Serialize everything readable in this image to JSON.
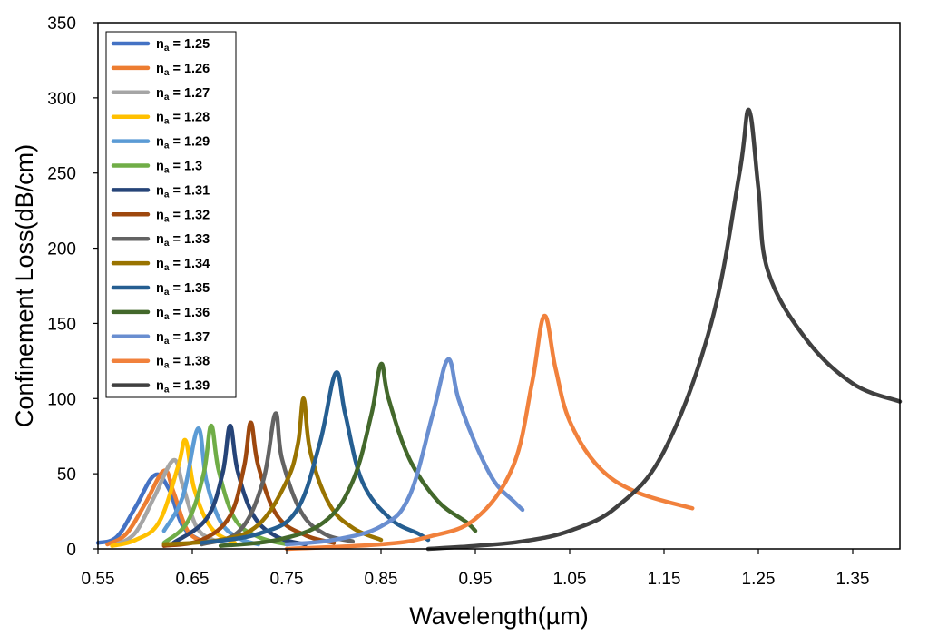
{
  "chart_data": {
    "type": "line",
    "title": "",
    "xlabel": "Wavelength(µm)",
    "ylabel": "Confinement  Loss(dB/cm)",
    "xlim": [
      0.55,
      1.4
    ],
    "ylim": [
      0,
      350
    ],
    "x_ticks": [
      0.55,
      0.65,
      0.75,
      0.85,
      0.95,
      1.05,
      1.15,
      1.25,
      1.35
    ],
    "x_tick_labels": [
      "0.55",
      "0.65",
      "0.75",
      "0.85",
      "0.95",
      "1.05",
      "1.15",
      "1.25",
      "1.35"
    ],
    "y_ticks": [
      0,
      50,
      100,
      150,
      200,
      250,
      300,
      350
    ],
    "y_tick_labels": [
      "0",
      "50",
      "100",
      "150",
      "200",
      "250",
      "300",
      "350"
    ],
    "grid": false,
    "legend_position": "top-left",
    "legend_symbol": "n",
    "legend_subscript": "a",
    "series": [
      {
        "name": "1.25",
        "color": "#4472C4",
        "peak_x": 0.61,
        "peak_y": 49,
        "points": [
          [
            0.55,
            4
          ],
          [
            0.57,
            8
          ],
          [
            0.59,
            28
          ],
          [
            0.61,
            49
          ],
          [
            0.625,
            40
          ],
          [
            0.64,
            15
          ],
          [
            0.66,
            5
          ]
        ]
      },
      {
        "name": "1.26",
        "color": "#ED7D31",
        "peak_x": 0.62,
        "peak_y": 52,
        "points": [
          [
            0.56,
            3
          ],
          [
            0.58,
            10
          ],
          [
            0.6,
            30
          ],
          [
            0.62,
            52
          ],
          [
            0.63,
            38
          ],
          [
            0.645,
            12
          ],
          [
            0.665,
            4
          ]
        ]
      },
      {
        "name": "1.27",
        "color": "#A5A5A5",
        "peak_x": 0.63,
        "peak_y": 59,
        "points": [
          [
            0.57,
            3
          ],
          [
            0.59,
            11
          ],
          [
            0.61,
            35
          ],
          [
            0.63,
            59
          ],
          [
            0.64,
            42
          ],
          [
            0.655,
            14
          ],
          [
            0.675,
            5
          ]
        ]
      },
      {
        "name": "1.28",
        "color": "#FFC000",
        "peak_x": 0.643,
        "peak_y": 72,
        "points": [
          [
            0.565,
            2
          ],
          [
            0.59,
            6
          ],
          [
            0.615,
            18
          ],
          [
            0.635,
            55
          ],
          [
            0.643,
            72
          ],
          [
            0.652,
            40
          ],
          [
            0.67,
            14
          ],
          [
            0.695,
            4
          ]
        ]
      },
      {
        "name": "1.29",
        "color": "#5B9BD5",
        "peak_x": 0.656,
        "peak_y": 80,
        "points": [
          [
            0.62,
            12
          ],
          [
            0.64,
            35
          ],
          [
            0.656,
            80
          ],
          [
            0.665,
            45
          ],
          [
            0.68,
            18
          ],
          [
            0.7,
            7
          ],
          [
            0.72,
            3
          ]
        ]
      },
      {
        "name": "1.3",
        "color": "#70AD47",
        "peak_x": 0.67,
        "peak_y": 82,
        "points": [
          [
            0.62,
            4
          ],
          [
            0.645,
            18
          ],
          [
            0.662,
            50
          ],
          [
            0.67,
            82
          ],
          [
            0.678,
            52
          ],
          [
            0.695,
            20
          ],
          [
            0.72,
            8
          ],
          [
            0.75,
            3
          ]
        ]
      },
      {
        "name": "1.31",
        "color": "#264478",
        "peak_x": 0.69,
        "peak_y": 82,
        "points": [
          [
            0.63,
            4
          ],
          [
            0.665,
            20
          ],
          [
            0.682,
            50
          ],
          [
            0.69,
            82
          ],
          [
            0.698,
            52
          ],
          [
            0.715,
            22
          ],
          [
            0.74,
            8
          ],
          [
            0.77,
            3
          ]
        ]
      },
      {
        "name": "1.32",
        "color": "#9E480E",
        "peak_x": 0.712,
        "peak_y": 84,
        "points": [
          [
            0.62,
            2
          ],
          [
            0.66,
            6
          ],
          [
            0.69,
            22
          ],
          [
            0.705,
            55
          ],
          [
            0.712,
            84
          ],
          [
            0.72,
            55
          ],
          [
            0.74,
            22
          ],
          [
            0.77,
            9
          ],
          [
            0.8,
            4
          ]
        ]
      },
      {
        "name": "1.33",
        "color": "#636363",
        "peak_x": 0.738,
        "peak_y": 90,
        "points": [
          [
            0.66,
            3
          ],
          [
            0.7,
            12
          ],
          [
            0.725,
            45
          ],
          [
            0.738,
            90
          ],
          [
            0.745,
            60
          ],
          [
            0.765,
            25
          ],
          [
            0.79,
            10
          ],
          [
            0.82,
            5
          ]
        ]
      },
      {
        "name": "1.34",
        "color": "#997300",
        "peak_x": 0.768,
        "peak_y": 100,
        "points": [
          [
            0.62,
            3
          ],
          [
            0.68,
            6
          ],
          [
            0.72,
            16
          ],
          [
            0.75,
            45
          ],
          [
            0.762,
            70
          ],
          [
            0.768,
            100
          ],
          [
            0.775,
            65
          ],
          [
            0.795,
            30
          ],
          [
            0.82,
            14
          ],
          [
            0.85,
            6
          ]
        ]
      },
      {
        "name": "1.35",
        "color": "#255E91",
        "peak_x": 0.802,
        "peak_y": 117,
        "points": [
          [
            0.66,
            4
          ],
          [
            0.72,
            10
          ],
          [
            0.76,
            25
          ],
          [
            0.785,
            70
          ],
          [
            0.802,
            117
          ],
          [
            0.812,
            90
          ],
          [
            0.83,
            45
          ],
          [
            0.86,
            20
          ],
          [
            0.89,
            10
          ],
          [
            0.9,
            6
          ]
        ]
      },
      {
        "name": "1.36",
        "color": "#43682B",
        "peak_x": 0.85,
        "peak_y": 123,
        "points": [
          [
            0.68,
            2
          ],
          [
            0.74,
            6
          ],
          [
            0.79,
            18
          ],
          [
            0.82,
            45
          ],
          [
            0.84,
            90
          ],
          [
            0.85,
            123
          ],
          [
            0.858,
            100
          ],
          [
            0.88,
            60
          ],
          [
            0.91,
            32
          ],
          [
            0.94,
            18
          ],
          [
            0.95,
            12
          ]
        ]
      },
      {
        "name": "1.37",
        "color": "#698ED0",
        "peak_x": 0.921,
        "peak_y": 126,
        "points": [
          [
            0.75,
            3
          ],
          [
            0.8,
            6
          ],
          [
            0.85,
            15
          ],
          [
            0.88,
            35
          ],
          [
            0.905,
            90
          ],
          [
            0.921,
            126
          ],
          [
            0.932,
            100
          ],
          [
            0.95,
            70
          ],
          [
            0.97,
            45
          ],
          [
            0.99,
            32
          ],
          [
            1.0,
            26
          ]
        ]
      },
      {
        "name": "1.38",
        "color": "#F1813C",
        "peak_x": 1.023,
        "peak_y": 155,
        "points": [
          [
            0.75,
            0
          ],
          [
            0.85,
            3
          ],
          [
            0.9,
            8
          ],
          [
            0.95,
            20
          ],
          [
            0.99,
            55
          ],
          [
            1.01,
            110
          ],
          [
            1.023,
            155
          ],
          [
            1.035,
            120
          ],
          [
            1.05,
            85
          ],
          [
            1.08,
            55
          ],
          [
            1.12,
            38
          ],
          [
            1.18,
            27
          ]
        ]
      },
      {
        "name": "1.39",
        "color": "#404040",
        "peak_x": 1.24,
        "peak_y": 292,
        "points": [
          [
            0.9,
            0
          ],
          [
            0.95,
            2
          ],
          [
            1.0,
            5
          ],
          [
            1.05,
            12
          ],
          [
            1.1,
            28
          ],
          [
            1.15,
            65
          ],
          [
            1.2,
            150
          ],
          [
            1.23,
            250
          ],
          [
            1.24,
            292
          ],
          [
            1.25,
            240
          ],
          [
            1.26,
            185
          ],
          [
            1.3,
            140
          ],
          [
            1.35,
            110
          ],
          [
            1.4,
            98
          ]
        ]
      }
    ]
  }
}
